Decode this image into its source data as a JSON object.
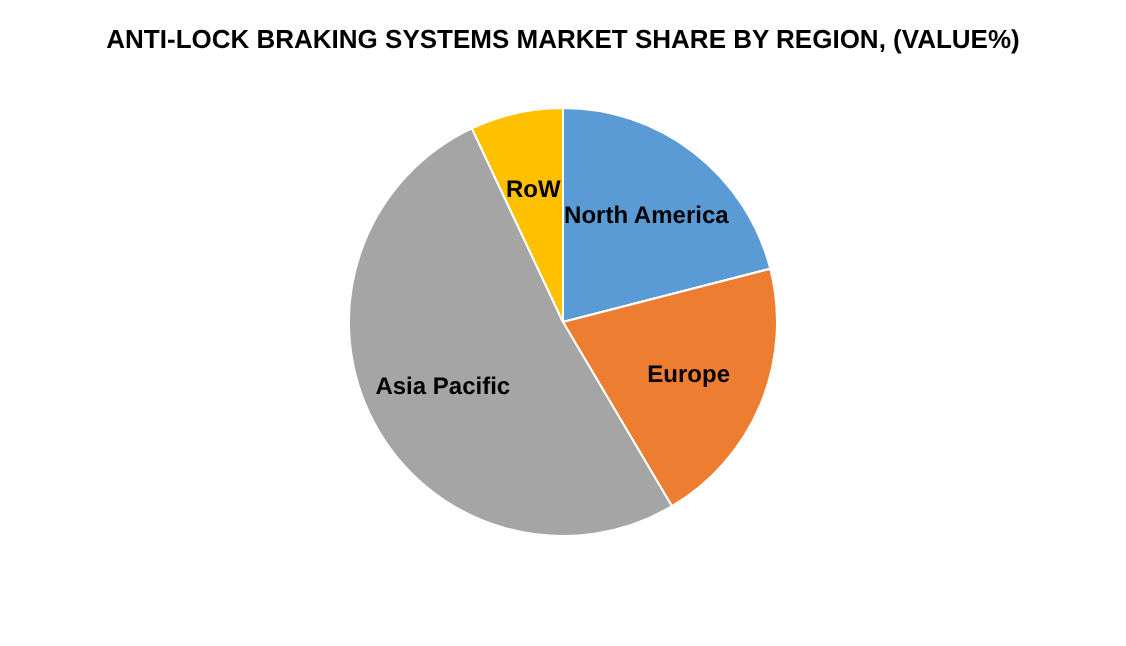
{
  "chart_data": {
    "type": "pie",
    "title": "ANTI-LOCK BRAKING SYSTEMS MARKET SHARE BY REGION, (VALUE%)",
    "categories": [
      "North America",
      "Europe",
      "Asia Pacific",
      "RoW"
    ],
    "values": [
      21,
      20.5,
      51.5,
      7
    ],
    "colors": [
      "#5b9bd5",
      "#ed7d31",
      "#a5a5a5",
      "#ffc000"
    ],
    "legend": false
  }
}
